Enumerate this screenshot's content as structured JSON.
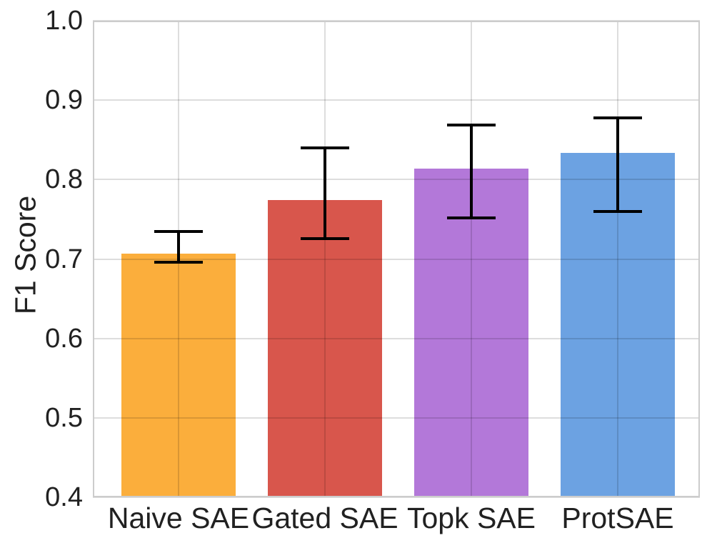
{
  "chart_data": {
    "type": "bar",
    "title": "",
    "xlabel": "",
    "ylabel": "F1 Score",
    "categories": [
      "Naive SAE",
      "Gated SAE",
      "Topk SAE",
      "ProtSAE"
    ],
    "values": [
      0.707,
      0.774,
      0.814,
      0.834
    ],
    "error_low": [
      0.696,
      0.726,
      0.752,
      0.76
    ],
    "error_high": [
      0.735,
      0.84,
      0.869,
      0.878
    ],
    "bar_colors": [
      "#FBAE3C",
      "#D8564C",
      "#B378D9",
      "#6CA2E2"
    ],
    "errorbar_color": "#000000",
    "ylim": [
      0.4,
      1.0
    ],
    "yticks": [
      0.4,
      0.5,
      0.6,
      0.7,
      0.8,
      0.9,
      1.0
    ],
    "ytick_labels": [
      "0.4",
      "0.5",
      "0.6",
      "0.7",
      "0.8",
      "0.9",
      "1.0"
    ],
    "grid": true,
    "grid_color": "#DCDCDC",
    "spine_color": "#CCCCCC",
    "text_color": "#212121",
    "background_color": "#FFFFFF",
    "legend": false
  }
}
